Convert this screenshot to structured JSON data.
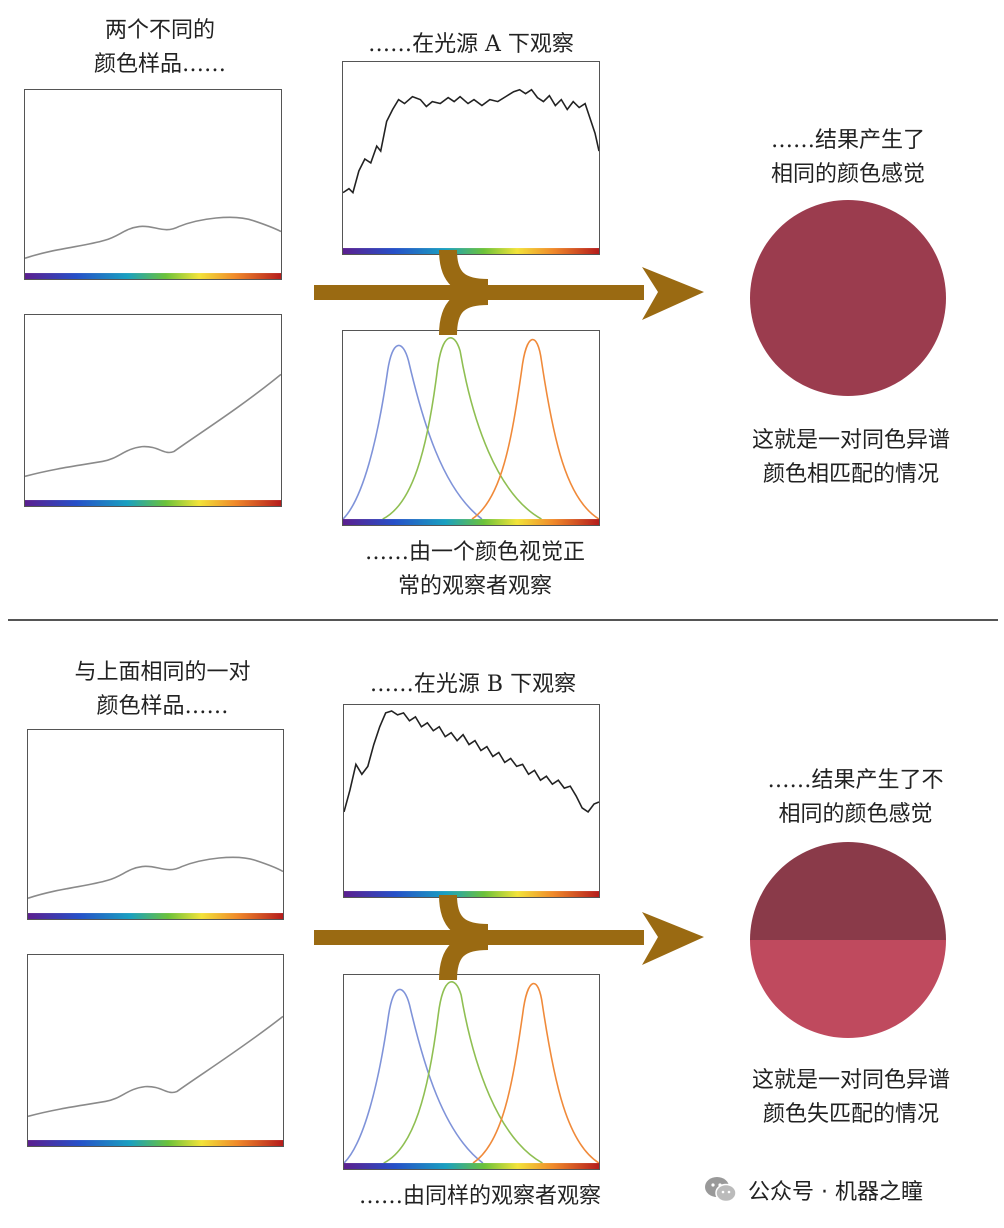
{
  "top": {
    "samples_label": [
      "两个不同的",
      "颜色样品……"
    ],
    "light_label": "……在光源 A 下观察",
    "observer_label": [
      "……由一个颜色视觉正",
      "常的观察者观察"
    ],
    "result_label": [
      "……结果产生了",
      "相同的颜色感觉"
    ],
    "conclusion_label": [
      "这就是一对同色异谱",
      "颜色相匹配的情况"
    ],
    "result_colors": {
      "upper": "#9b3c4e",
      "lower": "#9b3c4e"
    }
  },
  "bottom": {
    "samples_label": [
      "与上面相同的一对",
      "颜色样品……"
    ],
    "light_label": "……在光源 B 下观察",
    "observer_label": [
      "……由同样的观察者观察"
    ],
    "result_label": [
      "……结果产生了不",
      "相同的颜色感觉"
    ],
    "conclusion_label": [
      "这就是一对同色异谱",
      "颜色失匹配的情况"
    ],
    "result_colors": {
      "upper": "#8a3a49",
      "lower": "#bf4a5e"
    }
  },
  "colors": {
    "arrow": "#9a6a12",
    "cone_short": "#7f93d9",
    "cone_medium": "#8fbf52",
    "cone_long": "#f08a3a",
    "curve": "#333333"
  },
  "watermark": {
    "icon": "wechat-icon",
    "text": "公众号 · 机器之瞳"
  }
}
